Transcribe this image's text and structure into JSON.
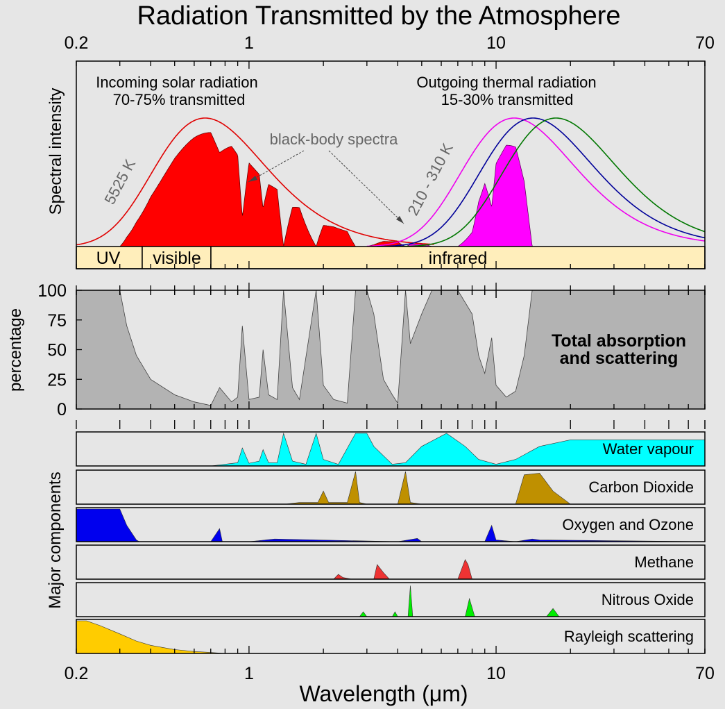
{
  "chart_data": {
    "type": "area",
    "title": "Radiation Transmitted by the Atmosphere",
    "xlabel": "Wavelength (μm)",
    "x_scale": "log",
    "xlim": [
      0.2,
      70
    ],
    "x_tick_labels": [
      "0.2",
      "1",
      "10",
      "70"
    ],
    "panels": [
      {
        "name": "spectral",
        "ylabel": "Spectral intensity",
        "annotations": {
          "solar_line1": "Incoming solar radiation",
          "solar_line2": "70-75% transmitted",
          "thermal_line1": "Outgoing thermal radiation",
          "thermal_line2": "15-30% transmitted",
          "blackbody": "black-body spectra",
          "solar_temp": "5525 K",
          "thermal_temp": "210 - 310 K"
        },
        "bands": [
          "UV",
          "visible",
          "infrared"
        ],
        "band_edges_um": [
          0.2,
          0.4,
          0.7,
          70
        ],
        "blackbody_curves": [
          {
            "temperature_K": 5525,
            "color": "#e00000"
          },
          {
            "temperature_K": 310,
            "color": "#ee00ee"
          },
          {
            "temperature_K": 260,
            "color": "#000099"
          },
          {
            "temperature_K": 210,
            "color": "#007700"
          }
        ],
        "colors": {
          "solar": "#ff0000",
          "thermal": "#ff00ff",
          "band_fill": "#ffeebb"
        }
      },
      {
        "name": "total",
        "ylabel": "percentage",
        "label_line1": "Total absorption",
        "label_line2": "and scattering",
        "y_ticks": [
          0,
          25,
          50,
          75,
          100
        ],
        "ylim": [
          0,
          100
        ],
        "color": "#b3b3b3",
        "x": [
          0.2,
          0.3,
          0.32,
          0.35,
          0.4,
          0.5,
          0.6,
          0.7,
          0.76,
          0.85,
          0.9,
          0.94,
          1.0,
          1.1,
          1.14,
          1.2,
          1.3,
          1.38,
          1.5,
          1.6,
          1.87,
          2.0,
          2.2,
          2.5,
          2.7,
          3.0,
          3.2,
          3.5,
          3.8,
          4.0,
          4.3,
          4.5,
          5.0,
          5.5,
          6.3,
          7.0,
          8.0,
          8.5,
          9.0,
          9.6,
          10.0,
          11.0,
          12.0,
          13.0,
          14.0,
          15.0,
          17.0,
          20.0,
          25.0,
          70.0
        ],
        "y": [
          100,
          100,
          70,
          45,
          25,
          12,
          6,
          3,
          18,
          6,
          10,
          70,
          8,
          10,
          50,
          12,
          8,
          100,
          18,
          8,
          100,
          20,
          8,
          5,
          100,
          100,
          80,
          25,
          12,
          5,
          100,
          55,
          80,
          100,
          100,
          100,
          80,
          45,
          30,
          60,
          20,
          10,
          15,
          45,
          100,
          100,
          100,
          100,
          100,
          100
        ]
      },
      {
        "name": "components",
        "ylabel": "Major components",
        "series": [
          {
            "name": "Water vapour",
            "color": "#00ffff",
            "x": [
              0.2,
              0.7,
              0.8,
              0.9,
              0.94,
              1.0,
              1.1,
              1.14,
              1.2,
              1.3,
              1.38,
              1.5,
              1.7,
              1.87,
              2.0,
              2.3,
              2.7,
              3.0,
              3.2,
              3.8,
              4.3,
              5.0,
              6.3,
              7.5,
              8.5,
              10.0,
              12.0,
              15.0,
              20.0,
              70.0
            ],
            "y": [
              0,
              0,
              5,
              10,
              55,
              8,
              15,
              50,
              10,
              10,
              100,
              15,
              5,
              100,
              20,
              5,
              100,
              100,
              60,
              5,
              10,
              60,
              100,
              60,
              20,
              5,
              20,
              60,
              80,
              80
            ]
          },
          {
            "name": "Carbon Dioxide",
            "color": "#bf9000",
            "x": [
              0.2,
              1.4,
              1.6,
              1.9,
              2.0,
              2.1,
              2.5,
              2.7,
              2.8,
              3.0,
              4.0,
              4.3,
              4.5,
              5.0,
              12.0,
              13.0,
              15.0,
              17.0,
              20.0,
              70.0
            ],
            "y": [
              0,
              0,
              5,
              5,
              40,
              5,
              5,
              100,
              5,
              0,
              0,
              100,
              5,
              0,
              0,
              90,
              95,
              40,
              0,
              0
            ]
          },
          {
            "name": "Oxygen and Ozone",
            "color": "#0000ee",
            "x": [
              0.2,
              0.3,
              0.32,
              0.35,
              0.36,
              0.7,
              0.76,
              0.78,
              1.0,
              1.27,
              4.0,
              4.8,
              5.0,
              9.0,
              9.6,
              10.0,
              12.0,
              14.0,
              15.0,
              70.0
            ],
            "y": [
              100,
              100,
              50,
              5,
              0,
              0,
              40,
              0,
              0,
              8,
              0,
              10,
              0,
              0,
              50,
              5,
              0,
              8,
              5,
              0
            ]
          },
          {
            "name": "Methane",
            "color": "#ee3333",
            "x": [
              0.2,
              2.2,
              2.3,
              2.4,
              2.6,
              3.2,
              3.3,
              3.5,
              3.7,
              7.0,
              7.5,
              7.7,
              8.0,
              70.0
            ],
            "y": [
              0,
              0,
              15,
              5,
              0,
              0,
              45,
              20,
              0,
              0,
              60,
              45,
              0,
              0
            ]
          },
          {
            "name": "Nitrous Oxide",
            "color": "#00ee00",
            "x": [
              0.2,
              2.8,
              2.9,
              3.0,
              3.8,
              3.9,
              4.0,
              4.4,
              4.5,
              4.6,
              7.5,
              7.8,
              8.2,
              16.0,
              17.0,
              18.0,
              70.0
            ],
            "y": [
              0,
              0,
              15,
              0,
              0,
              15,
              0,
              0,
              95,
              0,
              0,
              55,
              0,
              0,
              25,
              0,
              0
            ]
          },
          {
            "name": "Rayleigh scattering",
            "color": "#ffcc00",
            "x": [
              0.2,
              0.22,
              0.25,
              0.3,
              0.35,
              0.4,
              0.5,
              0.6,
              0.7,
              0.8,
              70.0
            ],
            "y": [
              100,
              100,
              85,
              60,
              38,
              25,
              12,
              6,
              3,
              0,
              0
            ]
          }
        ]
      }
    ]
  }
}
